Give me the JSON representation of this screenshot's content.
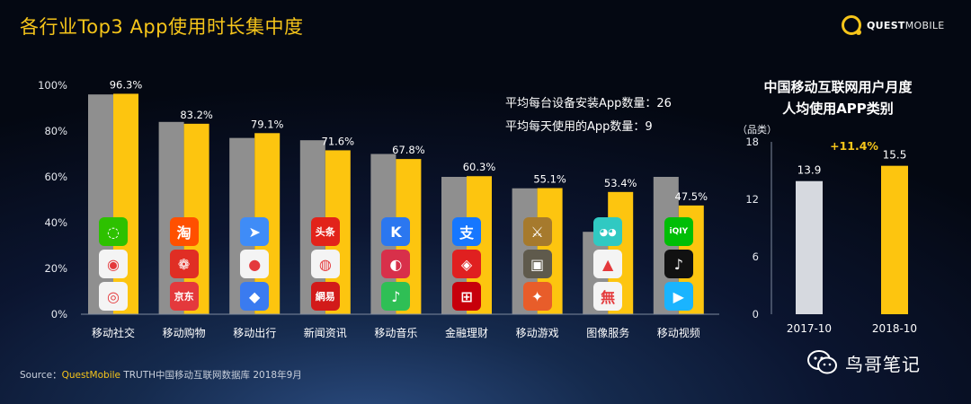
{
  "header": {
    "title": "各行业Top3 App使用时长集中度"
  },
  "brand": {
    "logo_text_bold": "QUEST",
    "logo_text": "MOBILE"
  },
  "colors": {
    "gray_bar": "#8f8f8f",
    "yellow_bar": "#fdc50f",
    "accent": "#f6c51a",
    "light_bar": "#d6d9df"
  },
  "chart_data": [
    {
      "type": "bar",
      "title": "各行业Top3 App使用时长集中度",
      "categories": [
        "移动社交",
        "移动购物",
        "移动出行",
        "新闻资讯",
        "移动音乐",
        "金融理财",
        "移动游戏",
        "图像服务",
        "移动视频"
      ],
      "series": [
        {
          "name": "",
          "color": "#8f8f8f",
          "values": [
            96,
            84,
            77,
            76,
            70,
            60,
            55,
            36,
            60
          ]
        },
        {
          "name": "",
          "color": "#fdc50f",
          "values": [
            96.3,
            83.2,
            79.1,
            71.6,
            67.8,
            60.3,
            55.1,
            53.4,
            47.5
          ]
        }
      ],
      "data_labels": [
        "96.3%",
        "83.2%",
        "79.1%",
        "71.6%",
        "67.8%",
        "60.3%",
        "55.1%",
        "53.4%",
        "47.5%"
      ],
      "yticks": [
        "0%",
        "20%",
        "40%",
        "60%",
        "80%",
        "100%"
      ],
      "ylim": [
        0,
        100
      ],
      "annotations": [
        "平均每台设备安装App数量：26",
        "平均每天使用的App数量：9"
      ],
      "grid": false
    },
    {
      "type": "bar",
      "title": "中国移动互联网用户月度人均使用APP类别",
      "title_lines": [
        "中国移动互联网用户月度",
        "人均使用APP类别"
      ],
      "ylabel": "（品类）",
      "categories": [
        "2017-10",
        "2018-10"
      ],
      "values": [
        13.9,
        15.5
      ],
      "data_labels": [
        "13.9",
        "15.5"
      ],
      "colors": [
        "#d6d9df",
        "#fdc50f"
      ],
      "growth_label": "+11.4%",
      "yticks": [
        "0",
        "6",
        "12",
        "18"
      ],
      "ylim": [
        0,
        18
      ],
      "grid": false
    }
  ],
  "app_icons": [
    [
      {
        "name": "wechat-icon",
        "glyph": "◌"
      },
      {
        "name": "qq-icon",
        "glyph": "◉"
      },
      {
        "name": "weibo-icon",
        "glyph": "◎"
      }
    ],
    [
      {
        "name": "taobao-icon",
        "glyph": "淘"
      },
      {
        "name": "pinduoduo-icon",
        "glyph": "❁"
      },
      {
        "name": "jd-icon",
        "glyph": "京东"
      }
    ],
    [
      {
        "name": "amap-icon",
        "glyph": "➤"
      },
      {
        "name": "baidu-map-icon",
        "glyph": "●"
      },
      {
        "name": "tencent-map-icon",
        "glyph": "◆"
      }
    ],
    [
      {
        "name": "toutiao-icon",
        "glyph": "头条"
      },
      {
        "name": "tencent-news-icon",
        "glyph": "◍"
      },
      {
        "name": "netease-news-icon",
        "glyph": "網易"
      }
    ],
    [
      {
        "name": "kugou-icon",
        "glyph": "K"
      },
      {
        "name": "netease-music-icon",
        "glyph": "◐"
      },
      {
        "name": "qq-music-icon",
        "glyph": "♪"
      }
    ],
    [
      {
        "name": "alipay-icon",
        "glyph": "支"
      },
      {
        "name": "bank-app-icon",
        "glyph": "◈"
      },
      {
        "name": "icbc-icon",
        "glyph": "⊞"
      }
    ],
    [
      {
        "name": "honor-of-kings-icon",
        "glyph": "⚔"
      },
      {
        "name": "pubg-icon",
        "glyph": "▣"
      },
      {
        "name": "happy-elimination-icon",
        "glyph": "✦"
      }
    ],
    [
      {
        "name": "meitu-camera-icon",
        "glyph": "◕◕"
      },
      {
        "name": "gallery-icon",
        "glyph": "▲"
      },
      {
        "name": "wuta-camera-icon",
        "glyph": "無"
      }
    ],
    [
      {
        "name": "iqiyi-icon",
        "glyph": "iQIY"
      },
      {
        "name": "douyin-icon",
        "glyph": "♪"
      },
      {
        "name": "tencent-video-icon",
        "glyph": "▶"
      }
    ]
  ],
  "app_icon_colors": [
    [
      "#2dc100",
      "#f4f4f4",
      "#f4f4f4"
    ],
    [
      "#ff5000",
      "#e02e24",
      "#e4393c"
    ],
    [
      "#3f8cf7",
      "#f4f4f4",
      "#3a7bf0"
    ],
    [
      "#e2231a",
      "#f4f4f4",
      "#d21a1a"
    ],
    [
      "#2b77f0",
      "#d8304a",
      "#2fbf55"
    ],
    [
      "#1677ff",
      "#e02020",
      "#c7000b"
    ],
    [
      "#a67a2d",
      "#5f5a4c",
      "#e85d2a"
    ],
    [
      "#30c9c2",
      "#f4f4f4",
      "#f4f4f4"
    ],
    [
      "#00be06",
      "#111111",
      "#1ab4ff"
    ]
  ],
  "footer": {
    "source_prefix": "Source：",
    "source_brand": "QuestMobile",
    "source_rest": " TRUTH中国移动互联网数据库 2018年9月",
    "wechat_text": "鸟哥笔记"
  }
}
